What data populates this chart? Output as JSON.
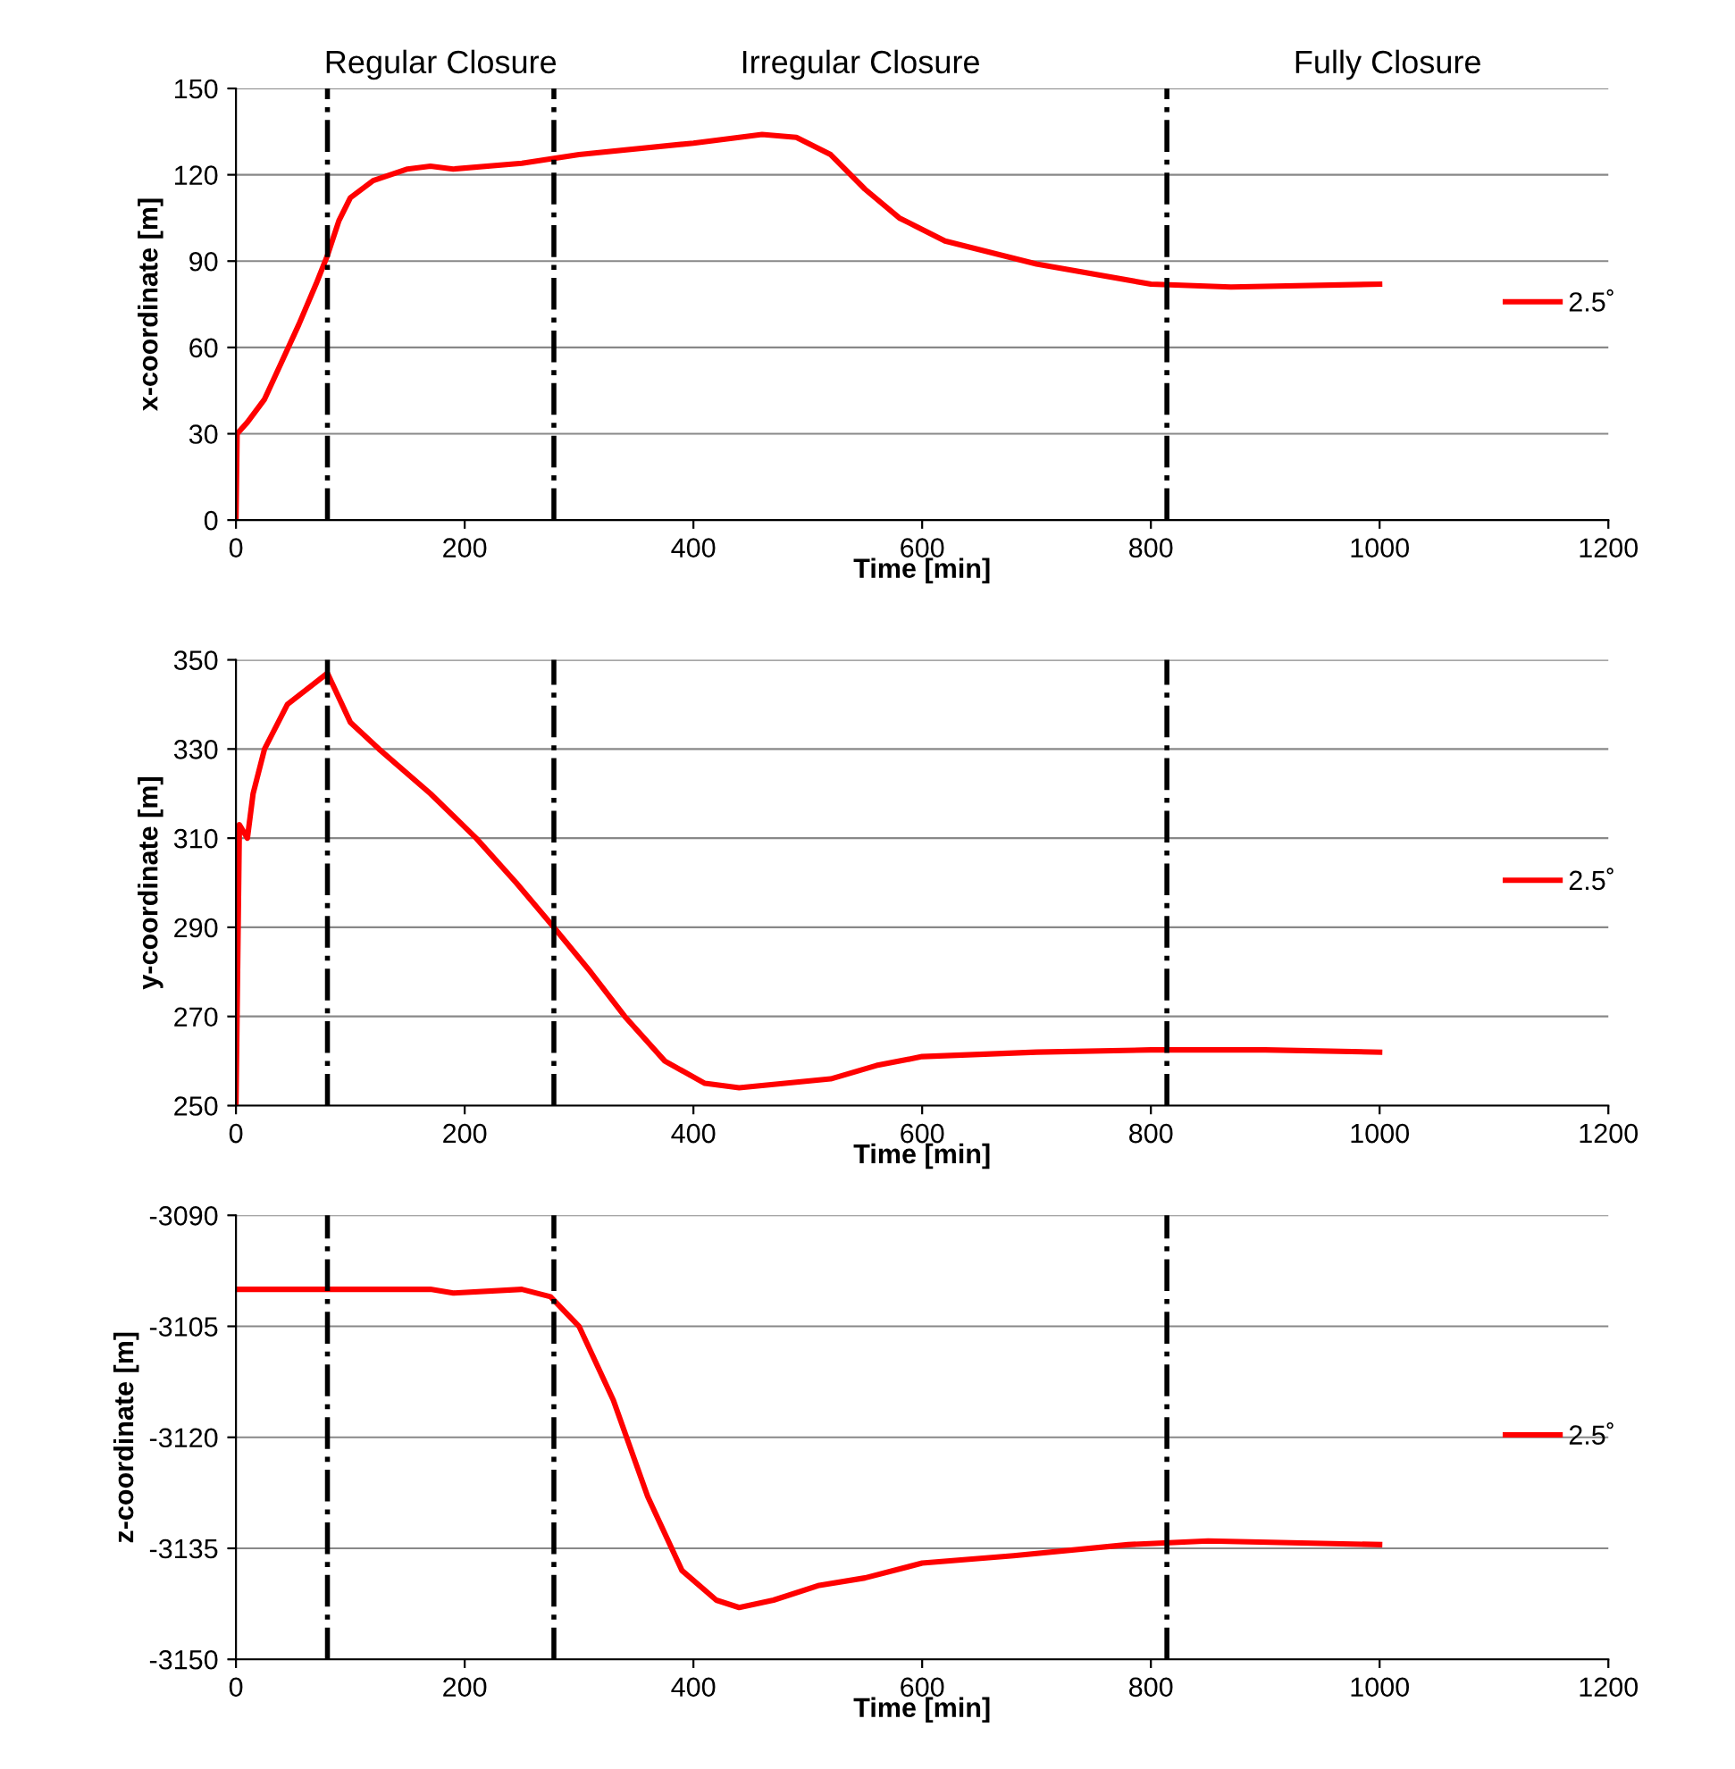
{
  "chart_data": [
    {
      "type": "line",
      "xlabel": "Time [min]",
      "ylabel": "x-coordinate [m]",
      "xlim": [
        0,
        1200
      ],
      "xticks": [
        0,
        200,
        400,
        600,
        800,
        1000,
        1200
      ],
      "ylim": [
        0,
        150
      ],
      "yticks": [
        0,
        30,
        60,
        90,
        120,
        150
      ],
      "grid": "y",
      "legend": "right",
      "series": [
        {
          "name": "2.5˚",
          "color": "#ff0000",
          "x": [
            0,
            1,
            10,
            25,
            40,
            55,
            70,
            80,
            90,
            100,
            120,
            150,
            170,
            190,
            250,
            300,
            400,
            460,
            490,
            520,
            550,
            580,
            620,
            700,
            800,
            870,
            1000
          ],
          "values": [
            0,
            30,
            34,
            42,
            55,
            68,
            82,
            92,
            104,
            112,
            118,
            122,
            123,
            122,
            124,
            127,
            131,
            134,
            133,
            127,
            115,
            105,
            97,
            89,
            82,
            81,
            82
          ]
        }
      ],
      "ref_lines": [
        {
          "axis": "x",
          "value": 80,
          "line_style": "dashdot",
          "color": "#000000"
        },
        {
          "axis": "x",
          "value": 278,
          "line_style": "dashdot",
          "color": "#000000"
        },
        {
          "axis": "x",
          "value": 814,
          "line_style": "dashdot",
          "color": "#000000"
        }
      ],
      "annotations": [
        "Regular Closure",
        "Irregular Closure",
        "Fully Closure"
      ]
    },
    {
      "type": "line",
      "xlabel": "Time [min]",
      "ylabel": "y-coordinate [m]",
      "xlim": [
        0,
        1200
      ],
      "xticks": [
        0,
        200,
        400,
        600,
        800,
        1000,
        1200
      ],
      "ylim": [
        250,
        350
      ],
      "yticks": [
        250,
        270,
        290,
        310,
        330,
        350
      ],
      "grid": "y",
      "legend": "right",
      "series": [
        {
          "name": "2.5˚",
          "color": "#ff0000",
          "x": [
            0,
            3,
            10,
            15,
            25,
            45,
            80,
            100,
            125,
            170,
            210,
            245,
            278,
            310,
            340,
            375,
            410,
            440,
            480,
            520,
            560,
            600,
            700,
            800,
            900,
            1000
          ],
          "values": [
            250,
            313,
            310,
            320,
            330,
            340,
            347,
            336,
            330,
            320,
            310,
            300,
            290,
            280,
            270,
            260,
            255,
            254,
            255,
            256,
            259,
            261,
            262,
            262.5,
            262.5,
            262
          ]
        }
      ],
      "ref_lines": [
        {
          "axis": "x",
          "value": 80,
          "line_style": "dashdot",
          "color": "#000000"
        },
        {
          "axis": "x",
          "value": 278,
          "line_style": "dashdot",
          "color": "#000000"
        },
        {
          "axis": "x",
          "value": 814,
          "line_style": "dashdot",
          "color": "#000000"
        }
      ]
    },
    {
      "type": "line",
      "xlabel": "Time [min]",
      "ylabel": "z-coordinate [m]",
      "xlim": [
        0,
        1200
      ],
      "xticks": [
        0,
        200,
        400,
        600,
        800,
        1000,
        1200
      ],
      "ylim": [
        -3150,
        -3090
      ],
      "yticks": [
        {
          "value": -3150,
          "label": "-3150"
        },
        {
          "value": -3135,
          "label": "-3135"
        },
        {
          "value": -3120,
          "label": "-3120"
        },
        {
          "value": -3105,
          "label": "-3105"
        },
        {
          "value": -3090,
          "label": "-3090"
        }
      ],
      "grid": "y",
      "legend": "right",
      "series": [
        {
          "name": "2.5˚",
          "color": "#ff0000",
          "x": [
            0,
            170,
            190,
            250,
            275,
            300,
            330,
            360,
            390,
            420,
            440,
            470,
            510,
            550,
            600,
            680,
            780,
            850,
            1000
          ],
          "values": [
            -3100,
            -3100,
            -3100.5,
            -3100,
            -3101,
            -3105,
            -3115,
            -3128,
            -3138,
            -3142,
            -3143,
            -3142,
            -3140,
            -3139,
            -3137,
            -3136,
            -3134.5,
            -3134,
            -3134.5
          ]
        }
      ],
      "ref_lines": [
        {
          "axis": "x",
          "value": 80,
          "line_style": "dashdot",
          "color": "#000000"
        },
        {
          "axis": "x",
          "value": 278,
          "line_style": "dashdot",
          "color": "#000000"
        },
        {
          "axis": "x",
          "value": 814,
          "line_style": "dashdot",
          "color": "#000000"
        }
      ]
    }
  ]
}
